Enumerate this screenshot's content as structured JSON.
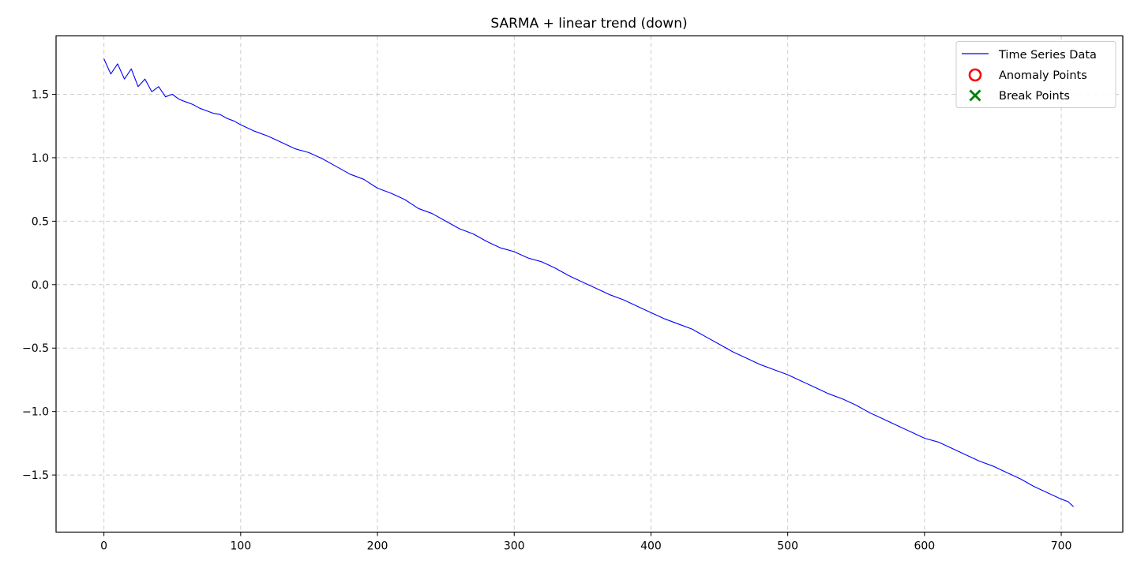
{
  "chart_data": {
    "type": "line",
    "title": "SARMA + linear trend (down)",
    "xlabel": "",
    "ylabel": "",
    "xlim": [
      -35,
      745
    ],
    "ylim": [
      -1.95,
      1.96
    ],
    "x_ticks": [
      0,
      100,
      200,
      300,
      400,
      500,
      600,
      700
    ],
    "x_tick_labels": [
      "0",
      "100",
      "200",
      "300",
      "400",
      "500",
      "600",
      "700"
    ],
    "y_ticks": [
      1.5,
      1.0,
      0.5,
      0.0,
      -0.5,
      -1.0,
      -1.5
    ],
    "y_tick_labels": [
      "1.5",
      "1.0",
      "0.5",
      "0.0",
      "−0.5",
      "−1.0",
      "−1.5"
    ],
    "grid": true,
    "legend_position": "top-right",
    "legend": [
      {
        "label": "Time Series Data",
        "marker": "line",
        "color": "#0000ff"
      },
      {
        "label": "Anomaly Points",
        "marker": "circle",
        "color": "#ff0000"
      },
      {
        "label": "Break Points",
        "marker": "x",
        "color": "#008000"
      }
    ],
    "series": [
      {
        "name": "Time Series Data",
        "color": "#0000ff",
        "x": [
          0,
          5,
          10,
          15,
          20,
          25,
          30,
          35,
          40,
          45,
          50,
          55,
          60,
          65,
          70,
          75,
          80,
          85,
          90,
          95,
          100,
          110,
          120,
          130,
          140,
          150,
          160,
          170,
          180,
          190,
          200,
          210,
          220,
          230,
          240,
          250,
          260,
          270,
          280,
          290,
          300,
          310,
          320,
          330,
          340,
          350,
          360,
          370,
          380,
          390,
          400,
          410,
          420,
          430,
          440,
          450,
          460,
          470,
          480,
          490,
          500,
          510,
          520,
          530,
          540,
          550,
          560,
          570,
          580,
          590,
          600,
          610,
          620,
          630,
          640,
          650,
          660,
          670,
          680,
          690,
          700,
          705,
          709
        ],
        "values": [
          1.78,
          1.66,
          1.74,
          1.62,
          1.7,
          1.56,
          1.62,
          1.52,
          1.56,
          1.48,
          1.5,
          1.46,
          1.44,
          1.42,
          1.39,
          1.37,
          1.35,
          1.34,
          1.31,
          1.29,
          1.26,
          1.21,
          1.17,
          1.12,
          1.07,
          1.04,
          0.99,
          0.93,
          0.87,
          0.83,
          0.76,
          0.72,
          0.67,
          0.6,
          0.56,
          0.5,
          0.44,
          0.4,
          0.34,
          0.29,
          0.26,
          0.21,
          0.18,
          0.13,
          0.07,
          0.02,
          -0.03,
          -0.08,
          -0.12,
          -0.17,
          -0.22,
          -0.27,
          -0.31,
          -0.35,
          -0.41,
          -0.47,
          -0.53,
          -0.58,
          -0.63,
          -0.67,
          -0.71,
          -0.76,
          -0.81,
          -0.86,
          -0.9,
          -0.95,
          -1.01,
          -1.06,
          -1.11,
          -1.16,
          -1.21,
          -1.24,
          -1.29,
          -1.34,
          -1.39,
          -1.43,
          -1.48,
          -1.53,
          -1.59,
          -1.64,
          -1.69,
          -1.71,
          -1.75
        ]
      }
    ],
    "anomaly_points": [],
    "break_points": []
  }
}
